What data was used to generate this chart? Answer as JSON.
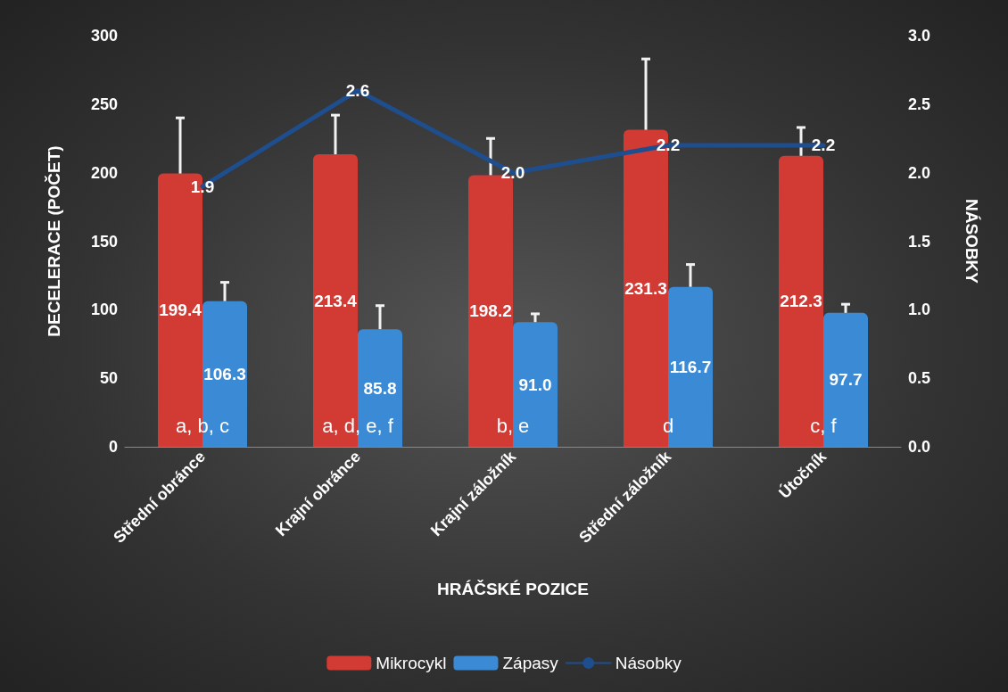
{
  "chart_data": {
    "type": "bar",
    "xlabel": "HRÁČSKÉ POZICE",
    "ylabel": "DECELERACE (POČET)",
    "y2label": "NÁSOBKY",
    "categories": [
      "Střední obránce",
      "Krajní obránce",
      "Krajní záložník",
      "Střední záložník",
      "Útočník"
    ],
    "series": [
      {
        "name": "Mikrocykl",
        "color": "#d23a34",
        "values": [
          199.4,
          213.4,
          198.2,
          231.3,
          212.3
        ],
        "value_labels": [
          "199.4",
          "213.4",
          "198.2",
          "231.3",
          "212.3"
        ],
        "errors": [
          [
            199.4,
            240
          ],
          [
            213.4,
            242
          ],
          [
            198.2,
            225
          ],
          [
            231.3,
            283
          ],
          [
            212.3,
            233
          ]
        ]
      },
      {
        "name": "Zápasy",
        "color": "#3a8ad6",
        "values": [
          106.3,
          85.8,
          91.0,
          116.7,
          97.7
        ],
        "value_labels": [
          "106.3",
          "85.8",
          "91.0",
          "116.7",
          "97.7"
        ],
        "errors": [
          [
            106.3,
            120
          ],
          [
            85.8,
            103
          ],
          [
            91.0,
            97
          ],
          [
            116.7,
            133
          ],
          [
            97.7,
            104
          ]
        ]
      },
      {
        "name": "Násobky",
        "type": "line",
        "axis": "y2",
        "color": "#1f4e8f",
        "values": [
          1.9,
          2.6,
          2.0,
          2.2,
          2.2
        ],
        "value_labels": [
          "1.9",
          "2.6",
          "2.0",
          "2.2",
          "2.2"
        ]
      }
    ],
    "ylim": [
      0,
      300
    ],
    "yticks": [
      0,
      50,
      100,
      150,
      200,
      250,
      300
    ],
    "y2lim": [
      0,
      3
    ],
    "y2ticks": [
      {
        "value": 0,
        "label": "0.0"
      },
      {
        "value": 0.5,
        "label": "0.5"
      },
      {
        "value": 1,
        "label": "1.0"
      },
      {
        "value": 1.5,
        "label": "1.5"
      },
      {
        "value": 2,
        "label": "2.0"
      },
      {
        "value": 2.5,
        "label": "2.5"
      },
      {
        "value": 3,
        "label": "3.0"
      }
    ],
    "annotations": [
      {
        "text": "a, b, c",
        "x": "Střední obránce",
        "y": 15
      },
      {
        "text": "a, d, e, f",
        "x": "Krajní obránce",
        "y": 15
      },
      {
        "text": "b, e",
        "x": "Krajní záložník",
        "y": 15
      },
      {
        "text": "d",
        "x": "Střední záložník",
        "y": 15
      },
      {
        "text": "c, f",
        "x": "Útočník",
        "y": 15
      }
    ],
    "grid": false,
    "legend": "bottom",
    "marker": "none",
    "line_style": "solid"
  }
}
